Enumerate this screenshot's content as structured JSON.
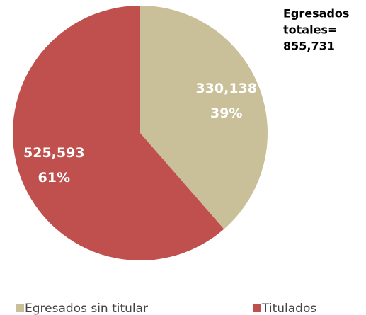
{
  "chart_data": {
    "type": "pie",
    "categories": [
      "Egresados sin titular",
      "Titulados"
    ],
    "values": [
      330138,
      525593
    ],
    "value_labels": [
      "330,138",
      "525,593"
    ],
    "percent_labels": [
      "39%",
      "61%"
    ],
    "colors": [
      "#c9bf98",
      "#c0504d"
    ],
    "annotation": [
      "Egresados",
      "totales=",
      "855,731"
    ],
    "legend": "bottom"
  }
}
